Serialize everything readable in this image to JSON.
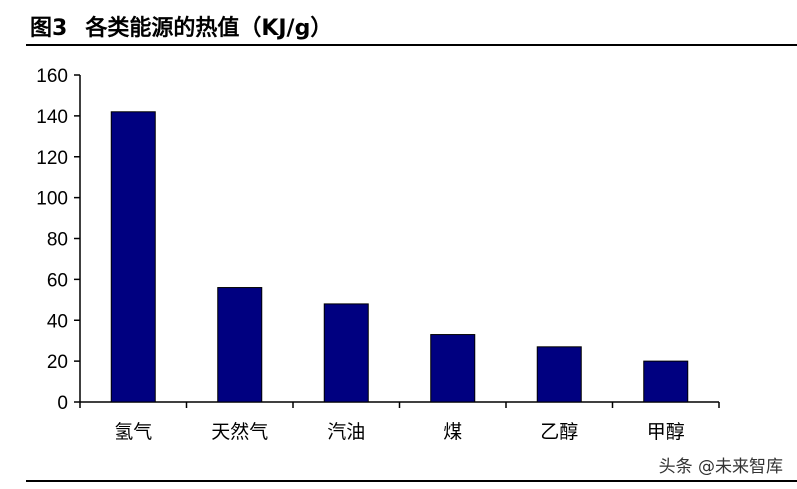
{
  "figure": {
    "label": "图3",
    "title": "各类能源的热值（KJ/g）"
  },
  "chart_data": {
    "type": "bar",
    "categories": [
      "氢气",
      "天然气",
      "汽油",
      "煤",
      "乙醇",
      "甲醇"
    ],
    "values": [
      142,
      56,
      48,
      33,
      27,
      20
    ],
    "ylim": [
      0,
      160
    ],
    "yticks": [
      0,
      20,
      40,
      60,
      80,
      100,
      120,
      140,
      160
    ],
    "bar_color": "#000080",
    "grid": false,
    "legend": "none"
  },
  "watermark": "头条 @未来智库"
}
